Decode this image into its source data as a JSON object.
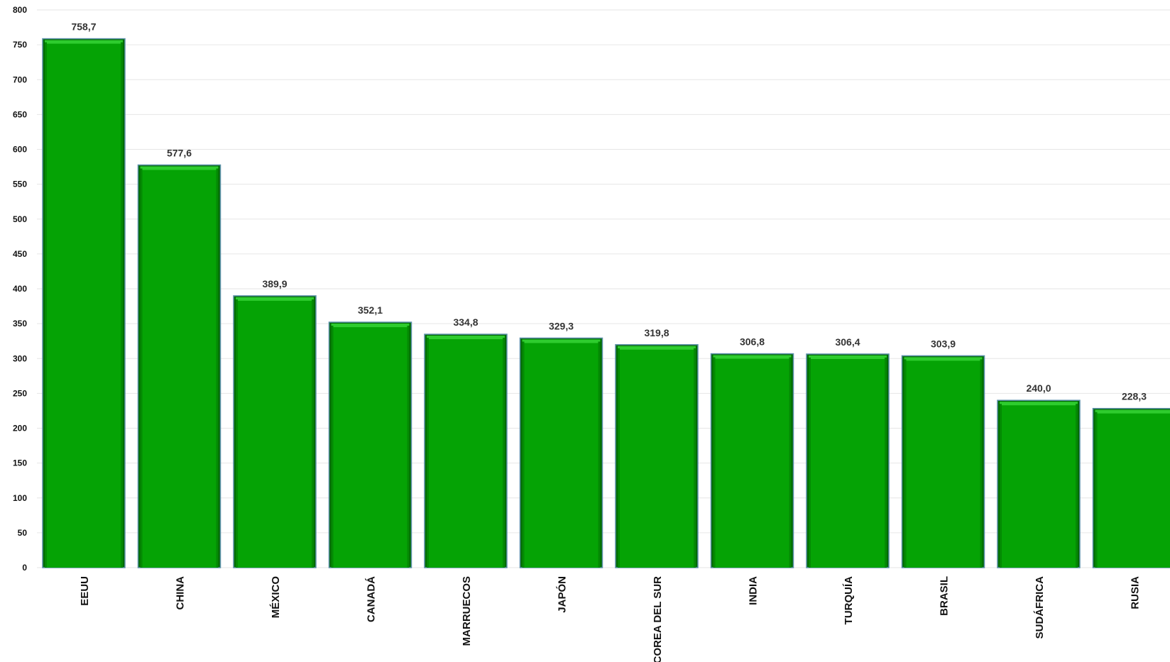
{
  "chart_data": {
    "type": "bar",
    "title": "",
    "xlabel": "",
    "ylabel": "",
    "ylim": [
      0,
      800
    ],
    "ytick_step": 50,
    "grid": true,
    "legend": "none",
    "categories": [
      "EEUU",
      "CHINA",
      "MÉXICO",
      "CANADÁ",
      "MARRUECOS",
      "JAPÓN",
      "COREA DEL SUR",
      "INDIA",
      "TURQUÍA",
      "BRASIL",
      "SUDÁFRICA",
      "RUSIA"
    ],
    "values": [
      758.7,
      577.6,
      389.9,
      352.1,
      334.8,
      329.3,
      319.8,
      306.8,
      306.4,
      303.9,
      240.0,
      228.3
    ],
    "data_labels": [
      "758,7",
      "577,6",
      "389,9",
      "352,1",
      "334,8",
      "329,3",
      "319,8",
      "306,8",
      "306,4",
      "303,9",
      "240,0",
      "228,3"
    ],
    "colors": {
      "bar_fill": "#05a305",
      "bar_top": "#2ecc2e",
      "bar_edge": "#036b03",
      "bar_outline": "#5a8fa8",
      "grid": "#e6e6e6",
      "axis_text": "#111111",
      "value_text": "#333333"
    }
  }
}
